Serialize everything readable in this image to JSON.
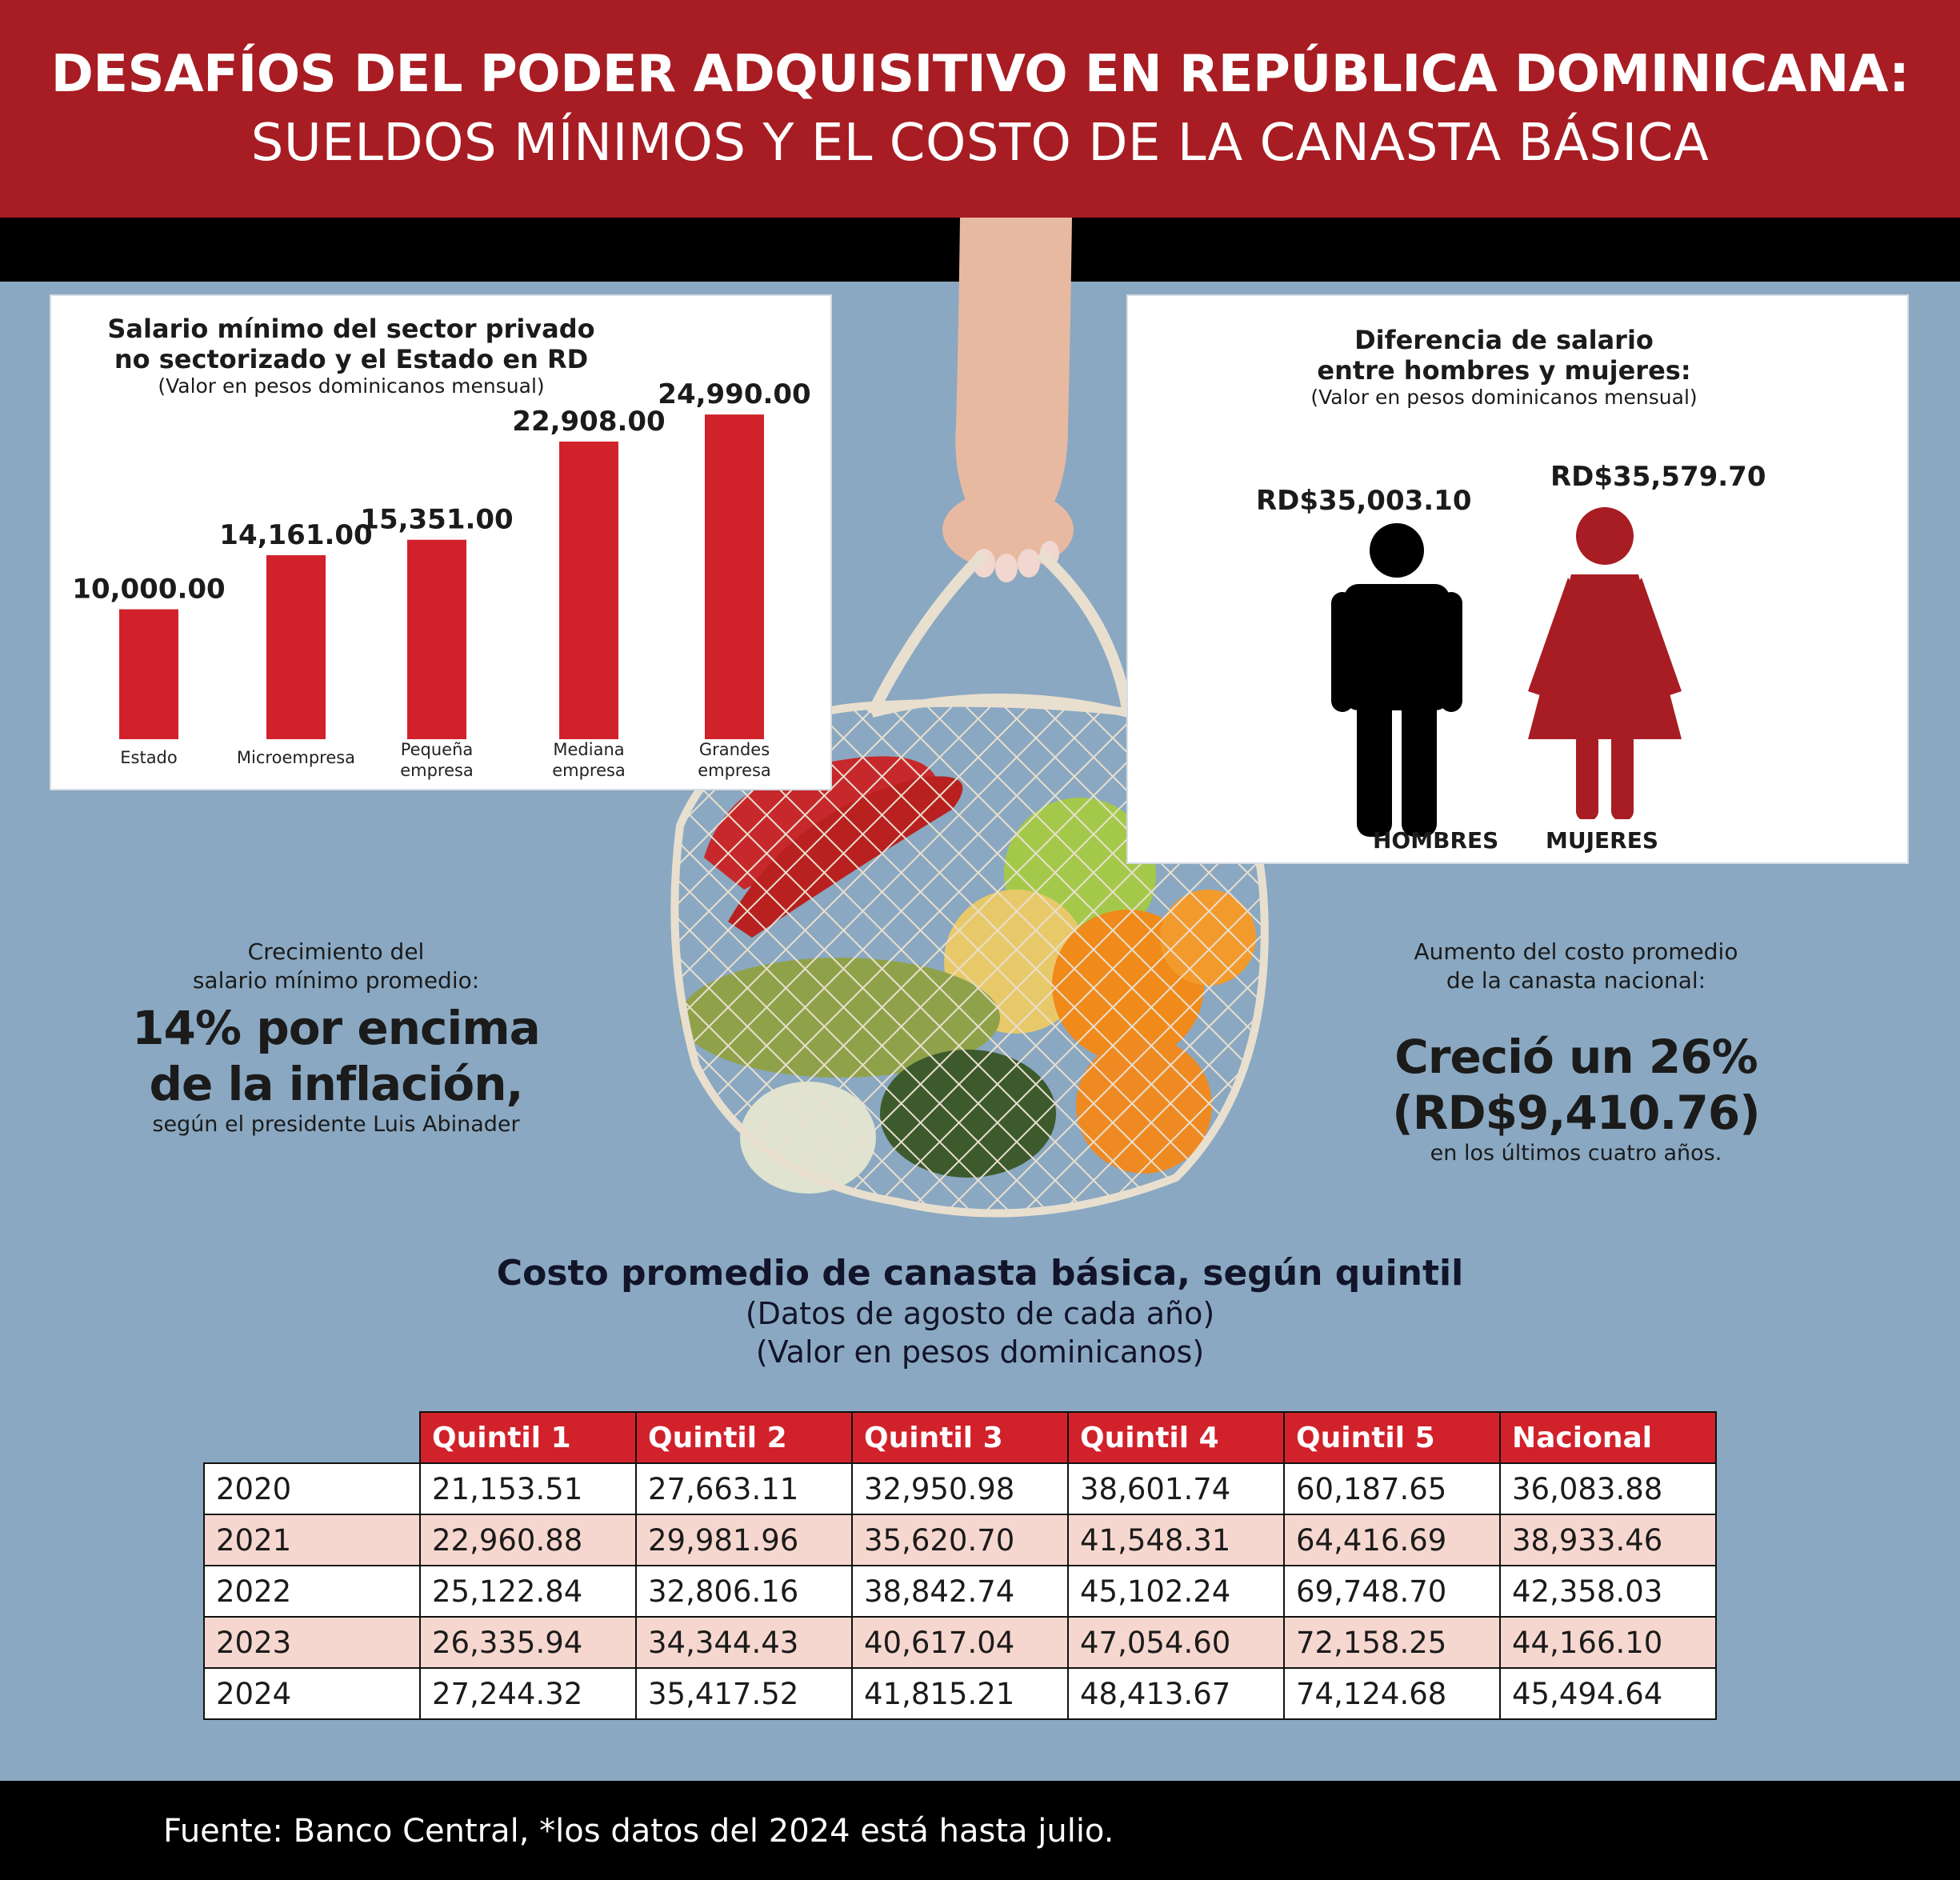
{
  "header": {
    "title_line1": "DESAFÍOS DEL PODER ADQUISITIVO EN REPÚBLICA DOMINICANA:",
    "title_line2": "SUELDOS MÍNIMOS Y EL COSTO DE LA CANASTA BÁSICA"
  },
  "colors": {
    "red": "#d1212b",
    "dark_red": "#a71d23",
    "background": "#8aa8c1",
    "row_tint": "#f6d7cf"
  },
  "salary_chart": {
    "title_line1": "Salario mínimo del sector privado",
    "title_line2": "no sectorizado y el Estado en RD",
    "subtitle": "(Valor en pesos dominicanos mensual)"
  },
  "gender": {
    "title_line1": "Diferencia de salario",
    "title_line2": "entre hombres y mujeres:",
    "subtitle": "(Valor en pesos dominicanos mensual)",
    "men_value": "RD$35,003.10",
    "women_value": "RD$35,579.70",
    "men_label": "HOMBRES",
    "women_label": "MUJERES"
  },
  "growth": {
    "label_line1": "Crecimiento del",
    "label_line2": "salario mínimo promedio:",
    "big_line1": "14% por encima",
    "big_line2": "de la inflación,",
    "note": "según el presidente Luis Abinader"
  },
  "basket_increase": {
    "label_line1": "Aumento del costo promedio",
    "label_line2": "de la canasta nacional:",
    "big_line1": "Creció un 26%",
    "big_line2": "(RD$9,410.76)",
    "note": "en los últimos cuatro años."
  },
  "table": {
    "title": "Costo promedio de canasta básica, según quintil",
    "subtitle1": "(Datos de agosto de cada año)",
    "subtitle2": "(Valor en pesos dominicanos)",
    "headers": [
      "Quintil 1",
      "Quintil 2",
      "Quintil 3",
      "Quintil 4",
      "Quintil 5",
      "Nacional"
    ],
    "rows": [
      [
        "2020",
        "21,153.51",
        "27,663.11",
        "32,950.98",
        "38,601.74",
        "60,187.65",
        "36,083.88"
      ],
      [
        "2021",
        "22,960.88",
        "29,981.96",
        "35,620.70",
        "41,548.31",
        "64,416.69",
        "38,933.46"
      ],
      [
        "2022",
        "25,122.84",
        "32,806.16",
        "38,842.74",
        "45,102.24",
        "69,748.70",
        "42,358.03"
      ],
      [
        "2023",
        "26,335.94",
        "34,344.43",
        "40,617.04",
        "47,054.60",
        "72,158.25",
        "44,166.10"
      ],
      [
        "2024",
        "27,244.32",
        "35,417.52",
        "41,815.21",
        "48,413.67",
        "74,124.68",
        "45,494.64"
      ]
    ]
  },
  "footer": {
    "source": "Fuente: Banco Central, *los datos del 2024 está hasta julio."
  },
  "chart_data": [
    {
      "type": "bar",
      "title": "Salario mínimo del sector privado no sectorizado y el Estado en RD",
      "subtitle": "(Valor en pesos dominicanos mensual)",
      "categories": [
        [
          "Estado"
        ],
        [
          "Microempresa"
        ],
        [
          "Pequeña",
          "empresa"
        ],
        [
          "Mediana",
          "empresa"
        ],
        [
          "Grandes",
          "empresa"
        ]
      ],
      "values": [
        10000,
        14161,
        15351,
        22908,
        24990
      ],
      "value_labels": [
        "10,000.00",
        "14,161.00",
        "15,351.00",
        "22,908.00",
        "24,990.00"
      ],
      "ylim": [
        0,
        25000
      ],
      "xlabel": "",
      "ylabel": ""
    },
    {
      "type": "table",
      "title": "Costo promedio de canasta básica, según quintil",
      "columns": [
        "Quintil 1",
        "Quintil 2",
        "Quintil 3",
        "Quintil 4",
        "Quintil 5",
        "Nacional"
      ],
      "rows": [
        "2020",
        "2021",
        "2022",
        "2023",
        "2024"
      ],
      "values": [
        [
          21153.51,
          27663.11,
          32950.98,
          38601.74,
          60187.65,
          36083.88
        ],
        [
          22960.88,
          29981.96,
          35620.7,
          41548.31,
          64416.69,
          38933.46
        ],
        [
          25122.84,
          32806.16,
          38842.74,
          45102.24,
          69748.7,
          42358.03
        ],
        [
          26335.94,
          34344.43,
          40617.04,
          47054.6,
          72158.25,
          44166.1
        ],
        [
          27244.32,
          35417.52,
          41815.21,
          48413.67,
          74124.68,
          45494.64
        ]
      ]
    }
  ]
}
